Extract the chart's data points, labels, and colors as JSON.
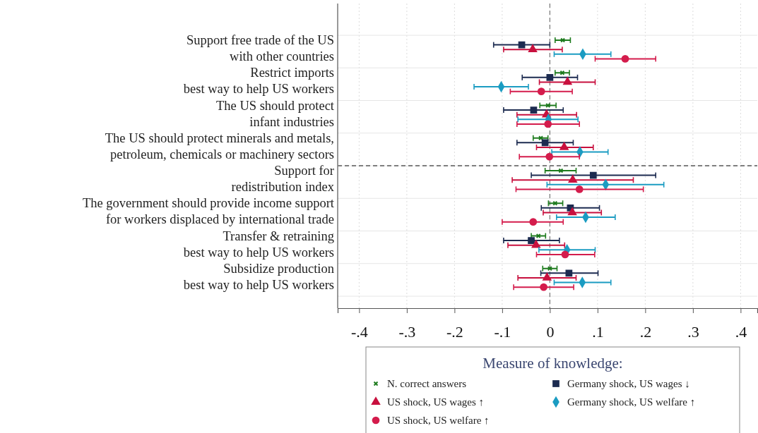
{
  "chart_data": {
    "type": "scatter",
    "orientation": "horizontal",
    "categories": [
      "Support free trade of the US\nwith other countries",
      "Restrict imports\nbest way to help US workers",
      "The US should protect\ninfant industries",
      "The US should protect minerals and metals,\npetroleum, chemicals or machinery sectors",
      "Support for\nredistribution index",
      "The government should provide income support\nfor workers displaced by international trade",
      "Transfer & retraining\nbest way to help US workers",
      "Subsidize production\nbest way to help US workers"
    ],
    "xlim": [
      -0.445,
      0.435
    ],
    "xticks": [
      {
        "value": -0.4,
        "label": "-.4"
      },
      {
        "value": -0.3,
        "label": "-.3"
      },
      {
        "value": -0.2,
        "label": "-.2"
      },
      {
        "value": -0.1,
        "label": "-.1"
      },
      0,
      {
        "value": 0.1,
        "label": ".1"
      },
      {
        "value": 0.2,
        "label": ".2"
      },
      {
        "value": 0.3,
        "label": ".3"
      },
      {
        "value": 0.4,
        "label": ".4"
      }
    ],
    "grid": true,
    "legend": "bottom",
    "legend_title": "Measure of knowledge:",
    "ref_lines": [
      {
        "axis": "x",
        "value": 0,
        "line_style": "dashed",
        "color": "#7f7f7f"
      },
      {
        "axis": "y",
        "value": "Support for\nredistribution index",
        "line_style": "dashed",
        "color": "#7f7f7f"
      }
    ],
    "series": [
      {
        "name": "N. correct answers",
        "color": "#1e7b1e",
        "marker": "cross",
        "values": [
          0.027,
          0.026,
          -0.004,
          -0.019,
          0.023,
          0.011,
          -0.024,
          0.0
        ],
        "errors": [
          [
            0.011,
            0.043
          ],
          [
            0.011,
            0.041
          ],
          [
            -0.021,
            0.013
          ],
          [
            -0.035,
            -0.004
          ],
          [
            -0.01,
            0.055
          ],
          [
            -0.003,
            0.027
          ],
          [
            -0.039,
            -0.009
          ],
          [
            -0.015,
            0.015
          ]
        ]
      },
      {
        "name": "Germany shock, US wages ↓",
        "color": "#1c2b50",
        "marker": "square",
        "values": [
          -0.059,
          0.0,
          -0.034,
          -0.01,
          0.091,
          0.043,
          -0.039,
          0.04
        ],
        "errors": [
          [
            -0.118,
            0.0
          ],
          [
            -0.058,
            0.058
          ],
          [
            -0.097,
            0.028
          ],
          [
            -0.069,
            0.049
          ],
          [
            -0.039,
            0.222
          ],
          [
            -0.018,
            0.104
          ],
          [
            -0.097,
            0.02
          ],
          [
            -0.019,
            0.101
          ]
        ]
      },
      {
        "name": "US shock, US wages ↑",
        "color": "#c8103e",
        "marker": "triangle",
        "values": [
          -0.036,
          0.037,
          -0.007,
          0.03,
          0.048,
          0.047,
          -0.029,
          -0.006
        ],
        "errors": [
          [
            -0.097,
            0.026
          ],
          [
            -0.022,
            0.095
          ],
          [
            -0.069,
            0.056
          ],
          [
            -0.028,
            0.091
          ],
          [
            -0.079,
            0.175
          ],
          [
            -0.014,
            0.108
          ],
          [
            -0.088,
            0.031
          ],
          [
            -0.067,
            0.055
          ]
        ]
      },
      {
        "name": "Germany shock, US welfare ↑",
        "color": "#1b9cc2",
        "marker": "diamond",
        "values": [
          0.069,
          -0.102,
          -0.003,
          0.063,
          0.117,
          0.075,
          0.036,
          0.068
        ],
        "errors": [
          [
            0.009,
            0.128
          ],
          [
            -0.159,
            -0.045
          ],
          [
            -0.067,
            0.059
          ],
          [
            0.004,
            0.122
          ],
          [
            -0.006,
            0.239
          ],
          [
            0.014,
            0.137
          ],
          [
            -0.023,
            0.095
          ],
          [
            0.009,
            0.128
          ]
        ]
      },
      {
        "name": "US shock, US welfare ↑",
        "color": "#d41c4c",
        "marker": "circle",
        "values": [
          0.158,
          -0.018,
          -0.004,
          -0.001,
          0.062,
          -0.035,
          0.032,
          -0.013
        ],
        "errors": [
          [
            0.095,
            0.222
          ],
          [
            -0.083,
            0.047
          ],
          [
            -0.069,
            0.062
          ],
          [
            -0.064,
            0.062
          ],
          [
            -0.071,
            0.196
          ],
          [
            -0.1,
            0.028
          ],
          [
            -0.028,
            0.094
          ],
          [
            -0.076,
            0.05
          ]
        ]
      }
    ]
  }
}
